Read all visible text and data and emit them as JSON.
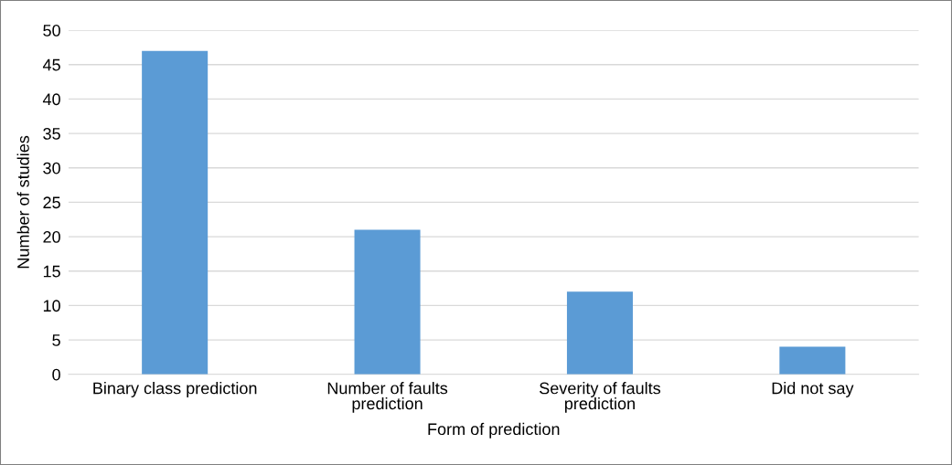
{
  "chart_data": {
    "type": "bar",
    "xlabel": "Form of prediction",
    "ylabel": "Number of studies",
    "categories": [
      "Binary class prediction",
      "Number of faults\nprediction",
      "Severity of faults\nprediction",
      "Did not say"
    ],
    "values": [
      47,
      21,
      12,
      4
    ],
    "color": "#5b9bd5",
    "ylim": [
      0,
      50
    ],
    "yticks": [
      0,
      5,
      10,
      15,
      20,
      25,
      30,
      35,
      40,
      45,
      50
    ],
    "grid": "y"
  }
}
